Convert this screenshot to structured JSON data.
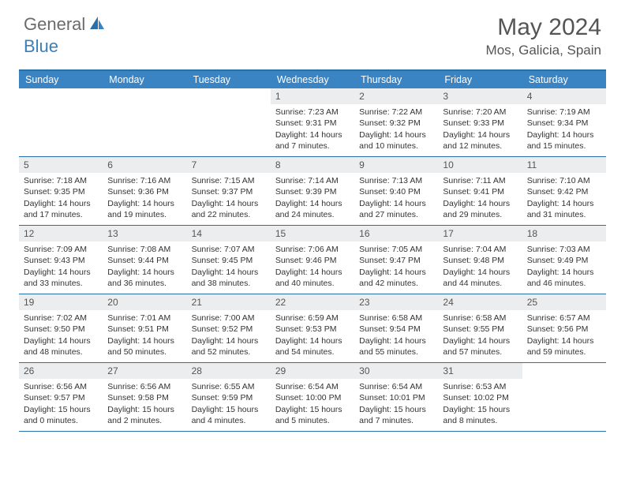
{
  "logo": {
    "general": "General",
    "blue": "Blue"
  },
  "header": {
    "title": "May 2024",
    "location": "Mos, Galicia, Spain"
  },
  "colors": {
    "header_bar": "#3a84c4",
    "border": "#2a6fa8",
    "daynum_bg": "#ecedef",
    "text": "#333333",
    "title": "#555555",
    "logo_gray": "#6b6b6b",
    "logo_blue": "#3a7fbb"
  },
  "weekdays": [
    "Sunday",
    "Monday",
    "Tuesday",
    "Wednesday",
    "Thursday",
    "Friday",
    "Saturday"
  ],
  "weeks": [
    [
      {
        "n": "",
        "sr": "",
        "ss": "",
        "dl": ""
      },
      {
        "n": "",
        "sr": "",
        "ss": "",
        "dl": ""
      },
      {
        "n": "",
        "sr": "",
        "ss": "",
        "dl": ""
      },
      {
        "n": "1",
        "sr": "7:23 AM",
        "ss": "9:31 PM",
        "dl": "14 hours and 7 minutes."
      },
      {
        "n": "2",
        "sr": "7:22 AM",
        "ss": "9:32 PM",
        "dl": "14 hours and 10 minutes."
      },
      {
        "n": "3",
        "sr": "7:20 AM",
        "ss": "9:33 PM",
        "dl": "14 hours and 12 minutes."
      },
      {
        "n": "4",
        "sr": "7:19 AM",
        "ss": "9:34 PM",
        "dl": "14 hours and 15 minutes."
      }
    ],
    [
      {
        "n": "5",
        "sr": "7:18 AM",
        "ss": "9:35 PM",
        "dl": "14 hours and 17 minutes."
      },
      {
        "n": "6",
        "sr": "7:16 AM",
        "ss": "9:36 PM",
        "dl": "14 hours and 19 minutes."
      },
      {
        "n": "7",
        "sr": "7:15 AM",
        "ss": "9:37 PM",
        "dl": "14 hours and 22 minutes."
      },
      {
        "n": "8",
        "sr": "7:14 AM",
        "ss": "9:39 PM",
        "dl": "14 hours and 24 minutes."
      },
      {
        "n": "9",
        "sr": "7:13 AM",
        "ss": "9:40 PM",
        "dl": "14 hours and 27 minutes."
      },
      {
        "n": "10",
        "sr": "7:11 AM",
        "ss": "9:41 PM",
        "dl": "14 hours and 29 minutes."
      },
      {
        "n": "11",
        "sr": "7:10 AM",
        "ss": "9:42 PM",
        "dl": "14 hours and 31 minutes."
      }
    ],
    [
      {
        "n": "12",
        "sr": "7:09 AM",
        "ss": "9:43 PM",
        "dl": "14 hours and 33 minutes."
      },
      {
        "n": "13",
        "sr": "7:08 AM",
        "ss": "9:44 PM",
        "dl": "14 hours and 36 minutes."
      },
      {
        "n": "14",
        "sr": "7:07 AM",
        "ss": "9:45 PM",
        "dl": "14 hours and 38 minutes."
      },
      {
        "n": "15",
        "sr": "7:06 AM",
        "ss": "9:46 PM",
        "dl": "14 hours and 40 minutes."
      },
      {
        "n": "16",
        "sr": "7:05 AM",
        "ss": "9:47 PM",
        "dl": "14 hours and 42 minutes."
      },
      {
        "n": "17",
        "sr": "7:04 AM",
        "ss": "9:48 PM",
        "dl": "14 hours and 44 minutes."
      },
      {
        "n": "18",
        "sr": "7:03 AM",
        "ss": "9:49 PM",
        "dl": "14 hours and 46 minutes."
      }
    ],
    [
      {
        "n": "19",
        "sr": "7:02 AM",
        "ss": "9:50 PM",
        "dl": "14 hours and 48 minutes."
      },
      {
        "n": "20",
        "sr": "7:01 AM",
        "ss": "9:51 PM",
        "dl": "14 hours and 50 minutes."
      },
      {
        "n": "21",
        "sr": "7:00 AM",
        "ss": "9:52 PM",
        "dl": "14 hours and 52 minutes."
      },
      {
        "n": "22",
        "sr": "6:59 AM",
        "ss": "9:53 PM",
        "dl": "14 hours and 54 minutes."
      },
      {
        "n": "23",
        "sr": "6:58 AM",
        "ss": "9:54 PM",
        "dl": "14 hours and 55 minutes."
      },
      {
        "n": "24",
        "sr": "6:58 AM",
        "ss": "9:55 PM",
        "dl": "14 hours and 57 minutes."
      },
      {
        "n": "25",
        "sr": "6:57 AM",
        "ss": "9:56 PM",
        "dl": "14 hours and 59 minutes."
      }
    ],
    [
      {
        "n": "26",
        "sr": "6:56 AM",
        "ss": "9:57 PM",
        "dl": "15 hours and 0 minutes."
      },
      {
        "n": "27",
        "sr": "6:56 AM",
        "ss": "9:58 PM",
        "dl": "15 hours and 2 minutes."
      },
      {
        "n": "28",
        "sr": "6:55 AM",
        "ss": "9:59 PM",
        "dl": "15 hours and 4 minutes."
      },
      {
        "n": "29",
        "sr": "6:54 AM",
        "ss": "10:00 PM",
        "dl": "15 hours and 5 minutes."
      },
      {
        "n": "30",
        "sr": "6:54 AM",
        "ss": "10:01 PM",
        "dl": "15 hours and 7 minutes."
      },
      {
        "n": "31",
        "sr": "6:53 AM",
        "ss": "10:02 PM",
        "dl": "15 hours and 8 minutes."
      },
      {
        "n": "",
        "sr": "",
        "ss": "",
        "dl": ""
      }
    ]
  ],
  "labels": {
    "sunrise": "Sunrise:",
    "sunset": "Sunset:",
    "daylight": "Daylight:"
  }
}
